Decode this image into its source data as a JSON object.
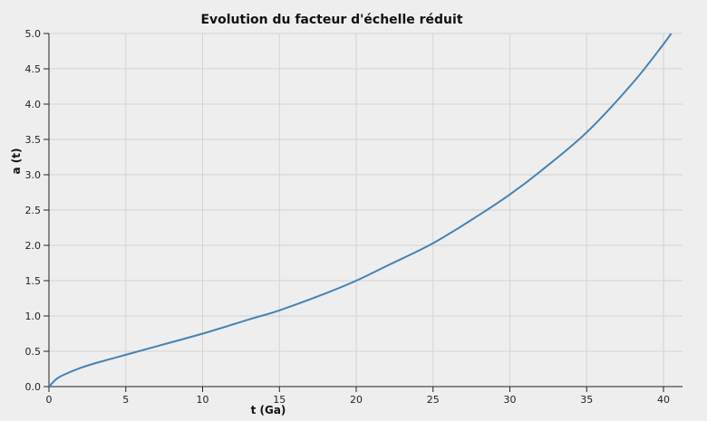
{
  "chart_data": {
    "type": "line",
    "title": "Evolution du facteur d'échelle réduit",
    "xlabel": "t (Ga)",
    "ylabel": "a (t)",
    "xlim": [
      0,
      40.5
    ],
    "ylim": [
      0,
      5.0
    ],
    "x_ticks": [
      0,
      5,
      10,
      15,
      20,
      25,
      30,
      35,
      40
    ],
    "x_tick_labels": [
      "0",
      "5",
      "10",
      "15",
      "20",
      "25",
      "30",
      "35",
      "40"
    ],
    "y_ticks": [
      0,
      0.5,
      1.0,
      1.5,
      2.0,
      2.5,
      3.0,
      3.5,
      4.0,
      4.5,
      5.0
    ],
    "y_tick_labels": [
      "0.0",
      "0.5",
      "1.0",
      "1.5",
      "2.0",
      "2.5",
      "3.0",
      "3.5",
      "4.0",
      "4.5",
      "5.0"
    ],
    "grid": true,
    "legend": false,
    "series": [
      {
        "color": "#4682b4",
        "x": [
          0,
          0.5,
          1,
          2,
          3,
          4,
          5,
          7,
          10,
          13,
          15,
          18,
          20,
          22,
          25,
          28,
          30,
          32,
          35,
          38,
          40,
          40.5
        ],
        "y": [
          0,
          0.11,
          0.17,
          0.26,
          0.33,
          0.39,
          0.45,
          0.57,
          0.75,
          0.95,
          1.08,
          1.32,
          1.5,
          1.71,
          2.03,
          2.43,
          2.72,
          3.05,
          3.6,
          4.3,
          4.85,
          5.0
        ]
      }
    ]
  }
}
